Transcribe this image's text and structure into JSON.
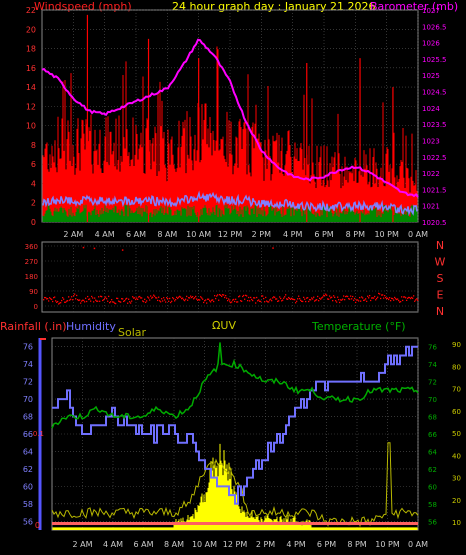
{
  "top_panel": {
    "title": "24 hour graph day : January 21 2026",
    "left_label": "Windspeed (mph)",
    "right_label": "Barometer (mb)",
    "left_ticks": [
      "0",
      "2",
      "4",
      "6",
      "8",
      "10",
      "12",
      "14",
      "16",
      "18",
      "20",
      "22"
    ],
    "right_ticks": [
      "1020.5",
      "1021",
      "1021.5",
      "1022",
      "1022.5",
      "1023",
      "1023.5",
      "1024",
      "1024.5",
      "1025",
      "1025.5",
      "1026",
      "1026.5",
      "1027"
    ],
    "x_ticks": [
      "2 AM",
      "4 AM",
      "6 AM",
      "8 AM",
      "10 AM",
      "12 PM",
      "2 PM",
      "4 PM",
      "6 PM",
      "8 PM",
      "10 PM",
      "0 AM"
    ]
  },
  "mid_panel": {
    "left_ticks": [
      "0",
      "90",
      "180",
      "270",
      "360"
    ],
    "right_labels": [
      "N",
      "W",
      "S",
      "E",
      "N"
    ]
  },
  "bottom_panel": {
    "labels": {
      "rain": "Rainfall (.in)",
      "humidity": "Humidity",
      "solar": "Solar",
      "uv": "ΩUV",
      "temp": "Temperature (°F)"
    },
    "left_ticks": [
      "56",
      "58",
      "60",
      "62",
      "64",
      "66",
      "68",
      "70",
      "72",
      "74",
      "76"
    ],
    "rain_ticks": [
      "0",
      "0.1"
    ],
    "right_inner_ticks": [
      "56",
      "58",
      "60",
      "62",
      "64",
      "66",
      "68",
      "70",
      "72",
      "74",
      "76"
    ],
    "right_outer_ticks": [
      "10",
      "20",
      "30",
      "40",
      "50",
      "60",
      "70",
      "80",
      "90"
    ],
    "x_ticks": [
      "2 AM",
      "4 AM",
      "6 AM",
      "8 AM",
      "10 AM",
      "12 PM",
      "2 PM",
      "4 PM",
      "6 PM",
      "8 PM",
      "10 PM",
      "0 AM"
    ]
  },
  "colors": {
    "wind": "#ff0000",
    "gust": "#ff0000",
    "avg_wind": "#8080ff",
    "barometer": "#ff00ff",
    "direction": "#ff0000",
    "humidity": "#7070ff",
    "temperature": "#00aa00",
    "solar": "#ffff00",
    "uv": "#cccc00",
    "rain": "#ff4040",
    "grid": "#555555",
    "axis_text": "#cccccc"
  },
  "chart_data": [
    {
      "type": "line",
      "title": "24 hour graph day : January 21 2026",
      "x_hours": [
        0,
        1,
        2,
        3,
        4,
        5,
        6,
        7,
        8,
        9,
        10,
        11,
        12,
        13,
        14,
        15,
        16,
        17,
        18,
        19,
        20,
        21,
        22,
        23,
        24
      ],
      "series": [
        {
          "name": "Windspeed (mph)",
          "axis": "left",
          "values": [
            6,
            7,
            7,
            7,
            7,
            7,
            7,
            7,
            6,
            7,
            8,
            8,
            7,
            7,
            6,
            6,
            6,
            5,
            5,
            5,
            5,
            5,
            5,
            4,
            4
          ]
        },
        {
          "name": "Barometer (mb)",
          "axis": "right",
          "values": [
            1025.2,
            1024.9,
            1024.3,
            1023.9,
            1023.8,
            1024.0,
            1024.2,
            1024.4,
            1024.6,
            1025.3,
            1026.1,
            1025.6,
            1024.8,
            1023.6,
            1022.7,
            1022.2,
            1021.9,
            1021.8,
            1021.9,
            1022.1,
            1022.2,
            1022.0,
            1021.7,
            1021.4,
            1021.3
          ]
        }
      ],
      "ylim_left": [
        0,
        22
      ],
      "ylim_right": [
        1020.5,
        1027
      ]
    },
    {
      "type": "scatter",
      "x_hours": [
        0,
        0.5,
        1,
        1.5,
        2,
        2.5,
        3,
        3.5,
        4,
        4.5,
        5,
        5.5,
        6,
        6.5,
        7,
        7.5,
        8,
        8.5,
        9,
        9.5,
        10,
        10.5,
        11,
        11.5,
        12,
        12.5,
        13,
        13.5,
        14,
        14.5,
        15,
        15.5,
        16,
        16.5,
        17,
        17.5,
        18,
        18.5,
        19,
        19.5,
        20,
        20.5,
        21,
        21.5,
        22,
        22.5,
        23,
        23.5,
        24
      ],
      "series": [
        {
          "name": "Wind direction",
          "values": [
            40,
            55,
            30,
            45,
            60,
            35,
            50,
            40,
            55,
            30,
            45,
            35,
            50,
            40,
            60,
            45,
            35,
            50,
            40,
            55,
            45,
            35,
            50,
            60,
            40,
            45,
            55,
            35,
            50,
            40,
            45,
            55,
            35,
            50,
            40,
            45,
            60,
            50,
            40,
            55,
            35,
            45,
            50,
            65,
            55,
            40,
            45,
            50,
            45
          ]
        }
      ],
      "ylim": [
        0,
        360
      ]
    },
    {
      "type": "line",
      "x_hours": [
        0,
        1,
        2,
        3,
        4,
        5,
        6,
        7,
        8,
        9,
        10,
        11,
        12,
        13,
        14,
        15,
        16,
        17,
        18,
        19,
        20,
        21,
        22,
        23,
        24
      ],
      "series": [
        {
          "name": "Humidity",
          "axis": "left",
          "values": [
            69,
            70,
            66,
            67,
            68,
            67,
            66,
            66,
            66,
            65,
            62,
            60,
            59,
            61,
            64,
            66,
            69,
            71,
            72,
            72,
            72,
            72,
            74,
            75,
            76
          ]
        },
        {
          "name": "Temperature (°F)",
          "axis": "right_inner",
          "values": [
            67,
            68,
            68,
            69,
            68,
            68,
            68,
            69,
            68,
            69,
            72,
            74,
            74,
            73,
            72,
            72,
            71,
            71,
            70,
            70,
            70,
            71,
            71,
            71,
            71
          ]
        },
        {
          "name": "Solar",
          "axis": "left",
          "values": [
            57,
            57,
            57,
            57,
            57,
            57,
            57,
            57,
            57,
            58,
            62,
            63,
            61,
            57,
            57,
            57,
            57,
            57,
            56,
            56,
            56,
            56,
            57,
            57,
            57
          ]
        }
      ],
      "ylim_left": [
        55,
        77
      ],
      "ylim_right_inner": [
        55,
        77
      ],
      "ylim_right_outer": [
        0,
        100
      ]
    }
  ]
}
